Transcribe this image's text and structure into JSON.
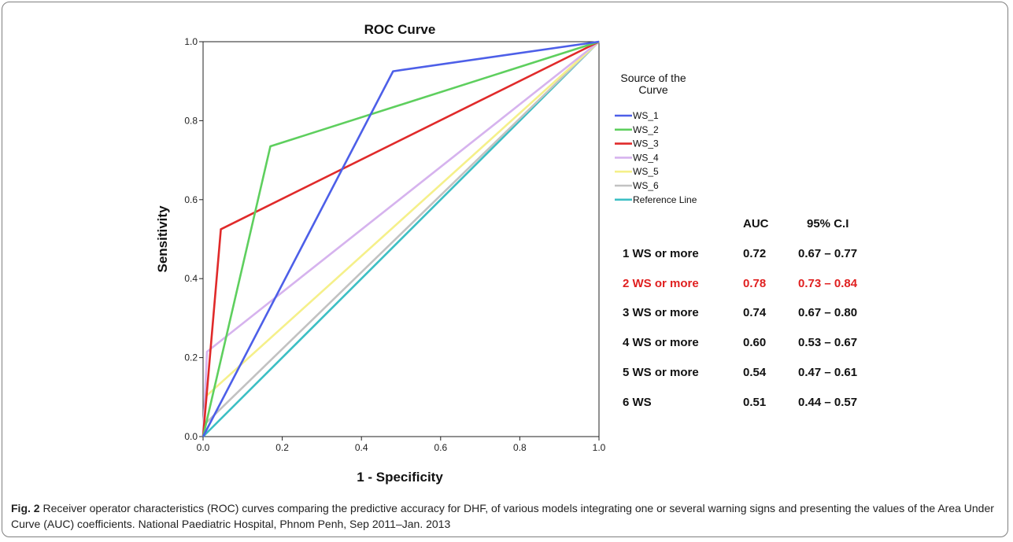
{
  "chart_data": {
    "type": "line",
    "title": "ROC Curve",
    "xlabel": "1 - Specificity",
    "ylabel": "Sensitivity",
    "xlim": [
      0.0,
      1.0
    ],
    "ylim": [
      0.0,
      1.0
    ],
    "x_ticks": [
      "0.0",
      "0.2",
      "0.4",
      "0.6",
      "0.8",
      "1.0"
    ],
    "y_ticks": [
      "0.0",
      "0.2",
      "0.4",
      "0.6",
      "0.8",
      "1.0"
    ],
    "grid": false,
    "legend": {
      "title_lines": [
        "Source of the",
        "Curve"
      ],
      "position": "right"
    },
    "series": [
      {
        "name": "WS_1",
        "color": "#4d5fe8",
        "points": [
          [
            0,
            0
          ],
          [
            0.48,
            0.925
          ],
          [
            1,
            1
          ]
        ]
      },
      {
        "name": "WS_2",
        "color": "#5ecf5e",
        "points": [
          [
            0,
            0
          ],
          [
            0.17,
            0.735
          ],
          [
            1,
            1
          ]
        ]
      },
      {
        "name": "WS_3",
        "color": "#e02a2a",
        "points": [
          [
            0,
            0
          ],
          [
            0.045,
            0.525
          ],
          [
            1,
            1
          ]
        ]
      },
      {
        "name": "WS_4",
        "color": "#d6b3ee",
        "points": [
          [
            0,
            0
          ],
          [
            0.01,
            0.215
          ],
          [
            1,
            1
          ]
        ]
      },
      {
        "name": "WS_5",
        "color": "#f5f08a",
        "points": [
          [
            0,
            0
          ],
          [
            0.005,
            0.1
          ],
          [
            1,
            1
          ]
        ]
      },
      {
        "name": "WS_6",
        "color": "#c2c2c2",
        "points": [
          [
            0,
            0
          ],
          [
            0.003,
            0.03
          ],
          [
            1,
            1
          ]
        ]
      },
      {
        "name": "Reference Line",
        "color": "#3cbfc4",
        "points": [
          [
            0,
            0
          ],
          [
            1,
            1
          ]
        ]
      }
    ]
  },
  "auc_table": {
    "headers": [
      "",
      "AUC",
      "95% C.I"
    ],
    "rows": [
      {
        "label": "1 WS or more",
        "auc": "0.72",
        "ci": "0.67 – 0.77",
        "color": "#111111"
      },
      {
        "label": "2 WS or more",
        "auc": "0.78",
        "ci": "0.73 – 0.84",
        "color": "#e02020"
      },
      {
        "label": "3 WS or more",
        "auc": "0.74",
        "ci": "0.67 – 0.80",
        "color": "#111111"
      },
      {
        "label": "4 WS or more",
        "auc": "0.60",
        "ci": "0.53 – 0.67",
        "color": "#111111"
      },
      {
        "label": "5 WS or more",
        "auc": "0.54",
        "ci": "0.47 – 0.61",
        "color": "#111111"
      },
      {
        "label": "6 WS",
        "auc": "0.51",
        "ci": "0.44 – 0.57",
        "color": "#111111"
      }
    ]
  },
  "caption": {
    "label": "Fig. 2",
    "text": " Receiver operator characteristics (ROC) curves comparing the predictive accuracy for DHF, of various models integrating one or several warning signs and presenting the values of the Area Under Curve (AUC) coefficients. National Paediatric Hospital, Phnom Penh, Sep 2011–Jan. 2013"
  }
}
